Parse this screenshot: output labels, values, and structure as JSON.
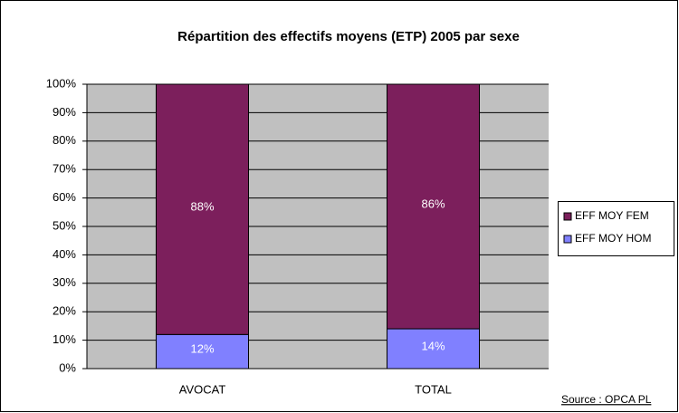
{
  "chart_data": {
    "type": "stacked_bar",
    "title": "Répartition des effectifs moyens (ETP) 2005 par sexe",
    "categories": [
      "AVOCAT",
      "TOTAL"
    ],
    "series": [
      {
        "name": "EFF MOY HOM",
        "color": "#8080ff",
        "values": [
          12,
          14
        ],
        "value_labels": [
          "12%",
          "14%"
        ]
      },
      {
        "name": "EFF MOY FEM",
        "color": "#7c1f5c",
        "values": [
          88,
          86
        ],
        "value_labels": [
          "88%",
          "86%"
        ]
      }
    ],
    "ylim": [
      0,
      100
    ],
    "yticks": [
      {
        "value": 0,
        "label": "0%"
      },
      {
        "value": 10,
        "label": "10%"
      },
      {
        "value": 20,
        "label": "20%"
      },
      {
        "value": 30,
        "label": "30%"
      },
      {
        "value": 40,
        "label": "40%"
      },
      {
        "value": 50,
        "label": "50%"
      },
      {
        "value": 60,
        "label": "60%"
      },
      {
        "value": 70,
        "label": "70%"
      },
      {
        "value": 80,
        "label": "80%"
      },
      {
        "value": 90,
        "label": "90%"
      },
      {
        "value": 100,
        "label": "100%"
      }
    ],
    "grid": true,
    "legend": "right",
    "annotation": "Source : OPCA PL"
  }
}
